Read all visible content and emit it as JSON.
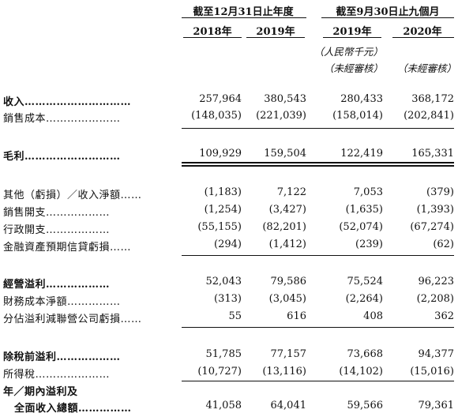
{
  "header": {
    "group1": "截至12月31日止年度",
    "group2": "截至9月30日止九個月",
    "years": [
      "2018年",
      "2019年",
      "2019年",
      "2020年"
    ],
    "currency": "（人民幣千元）",
    "unaudited1": "（未經審核）",
    "unaudited2": "（未經審核）"
  },
  "rows": [
    {
      "label": "收入",
      "dots": "…………………………",
      "values": [
        "257,964",
        "380,543",
        "280,433",
        "368,172"
      ]
    },
    {
      "label": "銷售成本",
      "dots": "…………………",
      "values": [
        "(148,035)",
        "(221,039)",
        "(158,014)",
        "(202,841)"
      ]
    },
    {
      "label": "毛利",
      "dots": "………………………",
      "values": [
        "109,929",
        "159,504",
        "122,419",
        "165,331"
      ]
    },
    {
      "label": "其他（虧損）／收入淨額",
      "dots": "……",
      "values": [
        "(1,183)",
        "7,122",
        "7,053",
        "(379)"
      ]
    },
    {
      "label": "銷售開支",
      "dots": "………………",
      "values": [
        "(1,254)",
        "(3,427)",
        "(1,635)",
        "(1,393)"
      ]
    },
    {
      "label": "行政開支",
      "dots": "………………",
      "values": [
        "(55,155)",
        "(82,201)",
        "(52,074)",
        "(67,274)"
      ]
    },
    {
      "label": "金融資產預期信貸虧損",
      "dots": "……",
      "values": [
        "(294)",
        "(1,412)",
        "(239)",
        "(62)"
      ]
    },
    {
      "label": "經營溢利",
      "dots": "………………",
      "values": [
        "52,043",
        "79,586",
        "75,524",
        "96,223"
      ]
    },
    {
      "label": "財務成本淨額",
      "dots": "……………",
      "values": [
        "(313)",
        "(3,045)",
        "(2,264)",
        "(2,208)"
      ]
    },
    {
      "label": "分佔溢利減聯營公司虧損",
      "dots": "……",
      "values": [
        "55",
        "616",
        "408",
        "362"
      ]
    },
    {
      "label": "除稅前溢利",
      "dots": "………………",
      "values": [
        "51,785",
        "77,157",
        "73,668",
        "94,377"
      ]
    },
    {
      "label": "所得稅",
      "dots": "…………………",
      "values": [
        "(10,727)",
        "(13,116)",
        "(14,102)",
        "(15,016)"
      ]
    },
    {
      "label": "全面收入總額",
      "dots": "……………",
      "values": [
        "41,058",
        "64,041",
        "59,566",
        "79,361"
      ]
    }
  ],
  "lastLabelLine1": "年／期內溢利及"
}
